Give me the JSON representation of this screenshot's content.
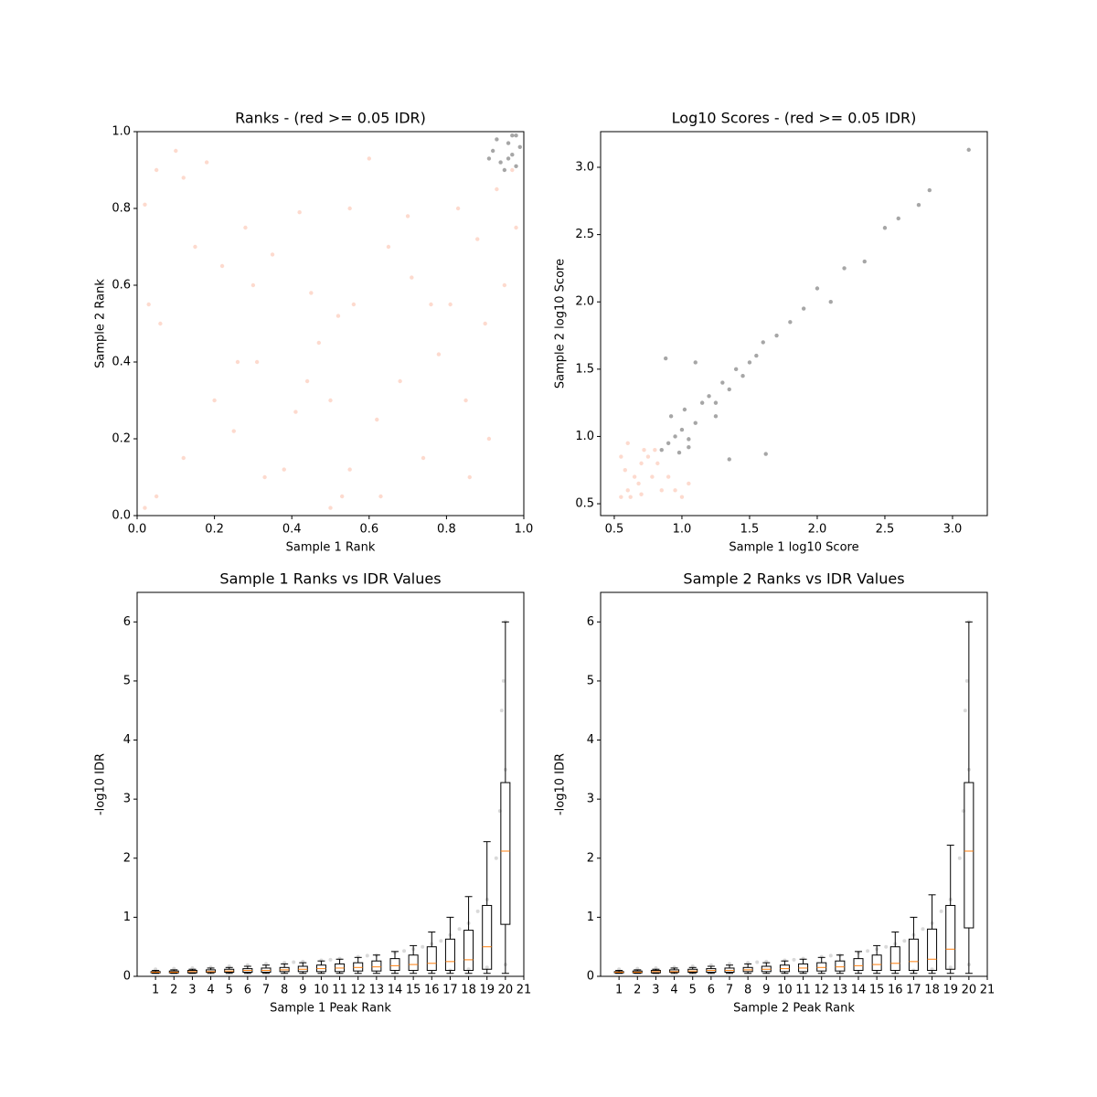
{
  "chart_data": [
    {
      "type": "scatter",
      "title": "Ranks - (red >= 0.05 IDR)",
      "xlabel": "Sample 1 Rank",
      "ylabel": "Sample 2 Rank",
      "xlim": [
        0,
        1
      ],
      "ylim": [
        0,
        1
      ],
      "xticks": [
        {
          "value": 0,
          "label": "0.0"
        },
        0.2,
        0.4,
        0.6,
        0.8,
        {
          "value": 1,
          "label": "1.0"
        }
      ],
      "yticks": [
        {
          "value": 0,
          "label": "0.0"
        },
        0.2,
        0.4,
        0.6,
        0.8,
        {
          "value": 1,
          "label": "1.0"
        }
      ],
      "alpha": 0.35,
      "series": [
        {
          "color": "#fa9474",
          "x": [
            0.02,
            0.05,
            0.03,
            0.06,
            0.12,
            0.2,
            0.25,
            0.31,
            0.38,
            0.44,
            0.15,
            0.22,
            0.28,
            0.35,
            0.42,
            0.47,
            0.5,
            0.53,
            0.56,
            0.52,
            0.55,
            0.62,
            0.68,
            0.74,
            0.78,
            0.65,
            0.71,
            0.85,
            0.9,
            0.88,
            0.93,
            0.97,
            0.12,
            0.18,
            0.26,
            0.33,
            0.41,
            0.63,
            0.7,
            0.76,
            0.02,
            0.05,
            0.81,
            0.83,
            0.5,
            0.55,
            0.1,
            0.3,
            0.45,
            0.6,
            0.95,
            0.91,
            0.86,
            0.98
          ],
          "y": [
            0.02,
            0.05,
            0.55,
            0.5,
            0.15,
            0.3,
            0.22,
            0.4,
            0.12,
            0.35,
            0.7,
            0.65,
            0.75,
            0.68,
            0.79,
            0.45,
            0.02,
            0.05,
            0.55,
            0.52,
            0.8,
            0.25,
            0.35,
            0.15,
            0.42,
            0.7,
            0.62,
            0.3,
            0.5,
            0.72,
            0.85,
            0.9,
            0.88,
            0.92,
            0.4,
            0.1,
            0.27,
            0.05,
            0.78,
            0.55,
            0.81,
            0.9,
            0.55,
            0.8,
            0.3,
            0.12,
            0.95,
            0.6,
            0.58,
            0.93,
            0.6,
            0.2,
            0.1,
            0.75
          ]
        },
        {
          "color": "#000000",
          "x": [
            0.92,
            0.94,
            0.96,
            0.98,
            0.95,
            0.97,
            0.99,
            0.93,
            0.96,
            0.98,
            0.91,
            0.97
          ],
          "y": [
            0.95,
            0.92,
            0.97,
            0.99,
            0.9,
            0.94,
            0.96,
            0.98,
            0.93,
            0.91,
            0.93,
            0.99
          ]
        }
      ]
    },
    {
      "type": "scatter",
      "title": "Log10 Scores - (red >= 0.05 IDR)",
      "xlabel": "Sample 1 log10 Score",
      "ylabel": "Sample 2 log10 Score",
      "xlim": [
        0.399,
        3.257
      ],
      "ylim": [
        0.412,
        3.265
      ],
      "xticks": [
        0.5,
        {
          "value": 1,
          "label": "1.0"
        },
        1.5,
        {
          "value": 2,
          "label": "2.0"
        },
        2.5,
        {
          "value": 3,
          "label": "3.0"
        }
      ],
      "yticks": [
        0.5,
        {
          "value": 1,
          "label": "1.0"
        },
        1.5,
        {
          "value": 2,
          "label": "2.0"
        },
        2.5,
        {
          "value": 3,
          "label": "3.0"
        }
      ],
      "alpha": 0.35,
      "series": [
        {
          "color": "#fa9474",
          "x": [
            0.55,
            0.6,
            0.65,
            0.7,
            0.75,
            0.8,
            0.85,
            0.58,
            0.62,
            0.68,
            0.72,
            0.78,
            0.55,
            0.6,
            0.9,
            0.95,
            1.0,
            1.05,
            0.7,
            0.82
          ],
          "y": [
            0.55,
            0.6,
            0.7,
            0.8,
            0.85,
            0.9,
            0.6,
            0.75,
            0.55,
            0.65,
            0.9,
            0.7,
            0.85,
            0.95,
            0.7,
            0.6,
            0.55,
            0.65,
            0.57,
            0.8
          ]
        },
        {
          "color": "#000000",
          "x": [
            0.85,
            0.9,
            0.95,
            1.0,
            1.05,
            1.1,
            0.92,
            0.98,
            1.02,
            1.15,
            1.2,
            1.25,
            1.3,
            1.35,
            1.4,
            1.45,
            1.5,
            1.55,
            1.6,
            1.7,
            1.8,
            1.9,
            2.0,
            2.1,
            2.2,
            2.35,
            2.5,
            2.6,
            2.75,
            2.83,
            3.12,
            1.1,
            1.25,
            1.35,
            1.62,
            0.88,
            1.05
          ],
          "y": [
            0.9,
            0.95,
            1.0,
            1.05,
            0.92,
            1.1,
            1.15,
            0.88,
            1.2,
            1.25,
            1.3,
            1.15,
            1.4,
            1.35,
            1.5,
            1.45,
            1.55,
            1.6,
            1.7,
            1.75,
            1.85,
            1.95,
            2.1,
            2.0,
            2.25,
            2.3,
            2.55,
            2.62,
            2.72,
            2.83,
            3.13,
            1.55,
            1.25,
            0.83,
            0.87,
            1.58,
            0.98
          ]
        }
      ]
    },
    {
      "type": "box",
      "title": "Sample 1 Ranks vs IDR Values",
      "xlabel": "Sample 1 Peak Rank",
      "ylabel": "-log10 IDR",
      "xlim": [
        0,
        21
      ],
      "ylim": [
        0,
        6.5
      ],
      "xticks": [
        1,
        2,
        3,
        4,
        5,
        6,
        7,
        8,
        9,
        10,
        11,
        12,
        13,
        14,
        15,
        16,
        17,
        18,
        19,
        20,
        21
      ],
      "yticks": [
        0,
        1,
        2,
        3,
        4,
        5,
        6
      ],
      "color": "#000000",
      "median_color": "#ff7f0e",
      "alpha": 0.15,
      "x": [
        1,
        2,
        3,
        4,
        5,
        6,
        7,
        8,
        9,
        10,
        11,
        12,
        13,
        14,
        15,
        16,
        17,
        18,
        19,
        19.5,
        20,
        20,
        19.8,
        18.5,
        17.5,
        16.5,
        15.5,
        14.5,
        12.5,
        10.5,
        8.5,
        19,
        18,
        17,
        20,
        19.9,
        19.7
      ],
      "y": [
        0.12,
        0.13,
        0.14,
        0.15,
        0.17,
        0.19,
        0.21,
        0.23,
        0.25,
        0.27,
        0.3,
        0.33,
        0.36,
        0.4,
        0.46,
        0.55,
        0.7,
        0.9,
        1.3,
        2.0,
        3.5,
        6.0,
        4.5,
        1.1,
        0.8,
        0.6,
        0.5,
        0.43,
        0.35,
        0.28,
        0.24,
        0.15,
        0.12,
        0.1,
        0.2,
        5.0,
        2.8
      ],
      "boxes": [
        [
          0.05,
          0.06,
          0.07,
          0.08,
          0.1
        ],
        [
          0.05,
          0.06,
          0.07,
          0.09,
          0.11
        ],
        [
          0.05,
          0.06,
          0.08,
          0.1,
          0.12
        ],
        [
          0.05,
          0.07,
          0.08,
          0.11,
          0.14
        ],
        [
          0.05,
          0.07,
          0.09,
          0.12,
          0.15
        ],
        [
          0.05,
          0.07,
          0.1,
          0.13,
          0.17
        ],
        [
          0.05,
          0.07,
          0.1,
          0.14,
          0.19
        ],
        [
          0.05,
          0.08,
          0.11,
          0.15,
          0.21
        ],
        [
          0.05,
          0.08,
          0.12,
          0.17,
          0.23
        ],
        [
          0.05,
          0.08,
          0.13,
          0.19,
          0.26
        ],
        [
          0.05,
          0.08,
          0.14,
          0.21,
          0.29
        ],
        [
          0.05,
          0.09,
          0.15,
          0.23,
          0.32
        ],
        [
          0.05,
          0.09,
          0.16,
          0.26,
          0.36
        ],
        [
          0.05,
          0.1,
          0.18,
          0.3,
          0.42
        ],
        [
          0.05,
          0.1,
          0.2,
          0.36,
          0.52
        ],
        [
          0.05,
          0.1,
          0.22,
          0.5,
          0.75
        ],
        [
          0.05,
          0.1,
          0.25,
          0.63,
          1.0
        ],
        [
          0.05,
          0.1,
          0.28,
          0.78,
          1.35
        ],
        [
          0.05,
          0.12,
          0.5,
          1.2,
          2.28
        ],
        [
          0.05,
          0.88,
          2.12,
          3.28,
          6.0
        ]
      ]
    },
    {
      "type": "box",
      "title": "Sample 2 Ranks vs IDR Values",
      "xlabel": "Sample 2 Peak Rank",
      "ylabel": "-log10 IDR",
      "xlim": [
        0,
        21
      ],
      "ylim": [
        0,
        6.5
      ],
      "xticks": [
        1,
        2,
        3,
        4,
        5,
        6,
        7,
        8,
        9,
        10,
        11,
        12,
        13,
        14,
        15,
        16,
        17,
        18,
        19,
        20,
        21
      ],
      "yticks": [
        0,
        1,
        2,
        3,
        4,
        5,
        6
      ],
      "color": "#000000",
      "median_color": "#ff7f0e",
      "alpha": 0.15,
      "x": [
        1,
        2,
        3,
        4,
        5,
        6,
        7,
        8,
        9,
        10,
        11,
        12,
        13,
        14,
        15,
        16,
        17,
        18,
        19,
        19.5,
        20,
        20,
        19.8,
        18.5,
        17.5,
        16.5,
        15.5,
        14.5,
        12.5,
        10.5,
        8.5,
        19,
        18,
        17,
        20,
        19.9,
        19.7
      ],
      "y": [
        0.12,
        0.13,
        0.14,
        0.15,
        0.17,
        0.19,
        0.21,
        0.23,
        0.25,
        0.27,
        0.3,
        0.33,
        0.36,
        0.4,
        0.46,
        0.55,
        0.7,
        0.9,
        1.3,
        2.0,
        3.5,
        6.0,
        4.5,
        1.1,
        0.8,
        0.6,
        0.5,
        0.43,
        0.35,
        0.28,
        0.24,
        0.15,
        0.12,
        0.1,
        0.2,
        5.0,
        2.8
      ],
      "boxes": [
        [
          0.05,
          0.06,
          0.07,
          0.08,
          0.1
        ],
        [
          0.05,
          0.06,
          0.07,
          0.09,
          0.11
        ],
        [
          0.05,
          0.06,
          0.08,
          0.1,
          0.12
        ],
        [
          0.05,
          0.07,
          0.08,
          0.11,
          0.14
        ],
        [
          0.05,
          0.07,
          0.09,
          0.12,
          0.15
        ],
        [
          0.05,
          0.07,
          0.1,
          0.13,
          0.17
        ],
        [
          0.05,
          0.07,
          0.1,
          0.14,
          0.19
        ],
        [
          0.05,
          0.08,
          0.11,
          0.15,
          0.21
        ],
        [
          0.05,
          0.08,
          0.12,
          0.17,
          0.23
        ],
        [
          0.05,
          0.08,
          0.13,
          0.19,
          0.26
        ],
        [
          0.05,
          0.08,
          0.14,
          0.21,
          0.29
        ],
        [
          0.05,
          0.09,
          0.15,
          0.23,
          0.32
        ],
        [
          0.05,
          0.09,
          0.16,
          0.26,
          0.36
        ],
        [
          0.05,
          0.1,
          0.18,
          0.3,
          0.42
        ],
        [
          0.05,
          0.1,
          0.2,
          0.36,
          0.52
        ],
        [
          0.05,
          0.1,
          0.22,
          0.5,
          0.75
        ],
        [
          0.05,
          0.1,
          0.25,
          0.63,
          1.0
        ],
        [
          0.05,
          0.1,
          0.29,
          0.8,
          1.38
        ],
        [
          0.05,
          0.12,
          0.46,
          1.2,
          2.22
        ],
        [
          0.05,
          0.82,
          2.12,
          3.28,
          6.0
        ]
      ]
    }
  ]
}
